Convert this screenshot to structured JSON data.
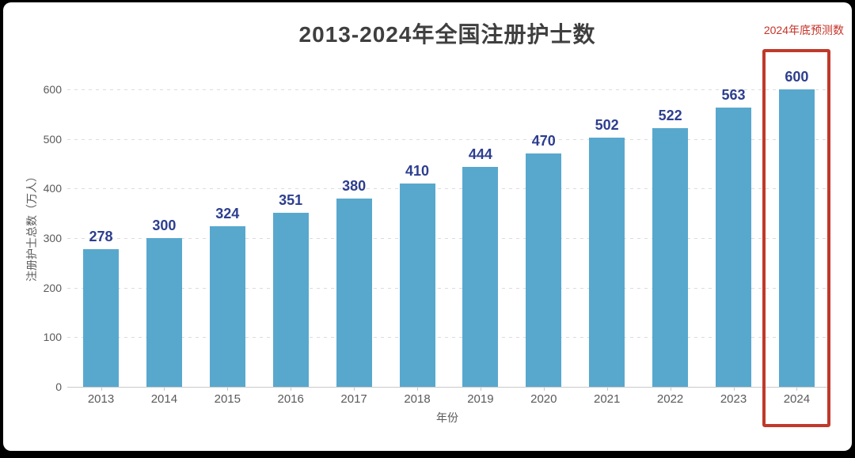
{
  "title": "2013-2024年全国注册护士数",
  "annotation": {
    "label": "2024年底预测数",
    "color": "#c53328"
  },
  "chart_data": {
    "type": "bar",
    "title": "2013-2024年全国注册护士数",
    "categories": [
      "2013",
      "2014",
      "2015",
      "2016",
      "2017",
      "2018",
      "2019",
      "2020",
      "2021",
      "2022",
      "2023",
      "2024"
    ],
    "values": [
      278,
      300,
      324,
      351,
      380,
      410,
      444,
      470,
      502,
      522,
      563,
      600
    ],
    "xlabel": "年份",
    "ylabel": "注册护士总数（万人）",
    "ylim": [
      0,
      600
    ],
    "yticks": [
      0,
      100,
      200,
      300,
      400,
      500,
      600
    ],
    "grid": "horizontal-dashed",
    "legend": "none",
    "bar_color": "#58a8ce",
    "value_label_color": "#2d3e8f",
    "highlight": {
      "category": "2024",
      "note": "2024年底预测数",
      "box_color": "#c0392b"
    }
  }
}
